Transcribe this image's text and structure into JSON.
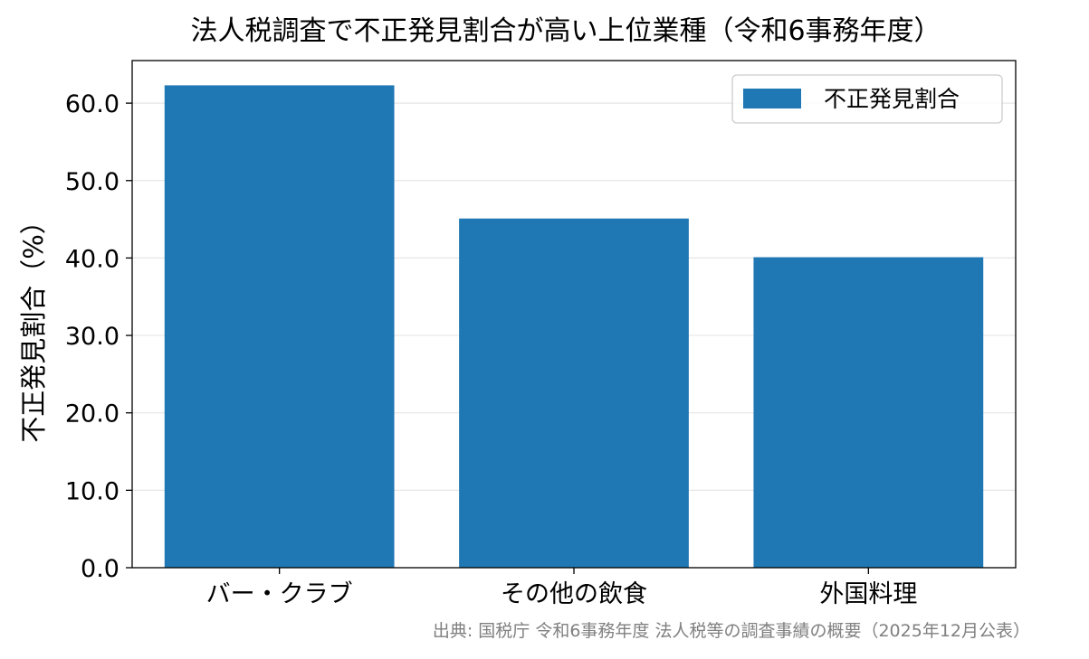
{
  "chart_data": {
    "type": "bar",
    "title": "法人税調査で不正発見割合が高い上位業種（令和6事務年度）",
    "categories": [
      "バー・クラブ",
      "その他の飲食",
      "外国料理"
    ],
    "series": [
      {
        "name": "不正発見割合",
        "values": [
          62.3,
          45.1,
          40.1
        ]
      }
    ],
    "xlabel": "",
    "ylabel": "不正発見割合（%）",
    "ylim": [
      0,
      65.5
    ],
    "yticks": [
      "0.0",
      "10.0",
      "20.0",
      "30.0",
      "40.0",
      "50.0",
      "60.0"
    ],
    "grid": "horizontal",
    "legend_position": "top-right",
    "bar_color": "#1f77b4",
    "source": "出典: 国税庁 令和6事務年度 法人税等の調査事績の概要（2025年12月公表）"
  }
}
